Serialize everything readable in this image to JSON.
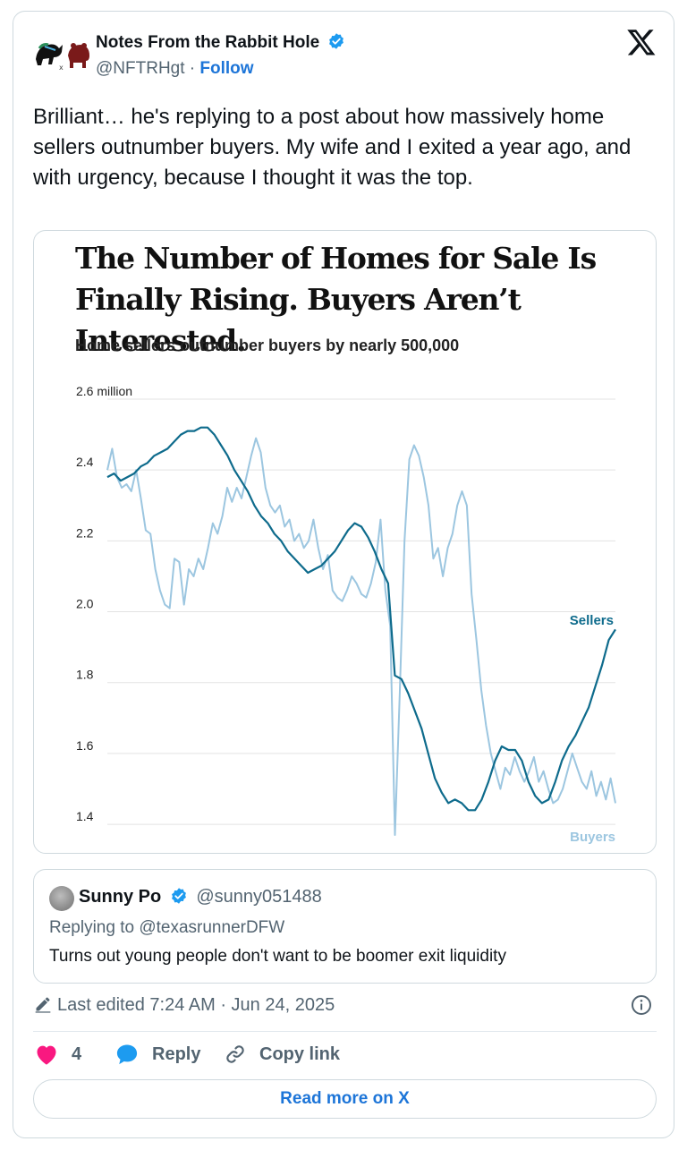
{
  "author": {
    "name": "Notes From the Rabbit Hole",
    "handle": "@NFTRHgt",
    "separator": "·",
    "follow_label": "Follow"
  },
  "tweet_text": "Brilliant… he's replying to a post about how massively home sellers outnumber buyers. My wife and I exited a year ago, and with urgency, because I thought it was the top.",
  "media": {
    "headline_line1": "The Number of Homes for Sale Is",
    "headline_line2": "Finally Rising. Buyers Aren’t Interested.",
    "subhead": "Home sellers outnumber buyers by nearly 500,000"
  },
  "chart_data": {
    "type": "line",
    "title": "The Number of Homes for Sale Is Finally Rising. Buyers Aren’t Interested.",
    "subtitle": "Home sellers outnumber buyers by nearly 500,000",
    "ylim": [
      1.37,
      2.6
    ],
    "y_ticks": [
      {
        "value": 2.6,
        "label": "2.6 million"
      },
      {
        "value": 2.4,
        "label": "2.4"
      },
      {
        "value": 2.2,
        "label": "2.2"
      },
      {
        "value": 2.0,
        "label": "2.0"
      },
      {
        "value": 1.8,
        "label": "1.8"
      },
      {
        "value": 1.6,
        "label": "1.6"
      },
      {
        "value": 1.4,
        "label": "1.4"
      }
    ],
    "grid": true,
    "colors": {
      "sellers": "#0e6b8c",
      "buyers": "#9cc6e0"
    },
    "series": [
      {
        "name": "Sellers",
        "values": [
          2.38,
          2.39,
          2.37,
          2.38,
          2.39,
          2.41,
          2.42,
          2.44,
          2.45,
          2.46,
          2.48,
          2.5,
          2.51,
          2.51,
          2.52,
          2.52,
          2.5,
          2.47,
          2.44,
          2.4,
          2.37,
          2.34,
          2.3,
          2.27,
          2.25,
          2.22,
          2.2,
          2.17,
          2.15,
          2.13,
          2.11,
          2.12,
          2.13,
          2.15,
          2.17,
          2.2,
          2.23,
          2.25,
          2.24,
          2.21,
          2.17,
          2.12,
          2.08,
          1.82,
          1.81,
          1.77,
          1.72,
          1.67,
          1.6,
          1.53,
          1.49,
          1.46,
          1.47,
          1.46,
          1.44,
          1.44,
          1.47,
          1.52,
          1.58,
          1.62,
          1.61,
          1.61,
          1.58,
          1.52,
          1.48,
          1.46,
          1.47,
          1.52,
          1.58,
          1.62,
          1.65,
          1.69,
          1.73,
          1.79,
          1.85,
          1.92,
          1.95
        ]
      },
      {
        "name": "Buyers",
        "values": [
          2.4,
          2.46,
          2.38,
          2.35,
          2.36,
          2.34,
          2.4,
          2.32,
          2.23,
          2.22,
          2.12,
          2.06,
          2.02,
          2.01,
          2.15,
          2.14,
          2.02,
          2.12,
          2.1,
          2.15,
          2.12,
          2.18,
          2.25,
          2.22,
          2.27,
          2.35,
          2.31,
          2.35,
          2.32,
          2.38,
          2.44,
          2.49,
          2.45,
          2.35,
          2.3,
          2.28,
          2.3,
          2.24,
          2.26,
          2.2,
          2.22,
          2.18,
          2.2,
          2.26,
          2.18,
          2.12,
          2.16,
          2.06,
          2.04,
          2.03,
          2.06,
          2.1,
          2.08,
          2.05,
          2.04,
          2.08,
          2.14,
          2.26,
          2.06,
          1.96,
          1.37,
          1.77,
          2.2,
          2.43,
          2.47,
          2.44,
          2.38,
          2.3,
          2.15,
          2.18,
          2.1,
          2.18,
          2.22,
          2.3,
          2.34,
          2.3,
          2.05,
          1.92,
          1.78,
          1.68,
          1.6,
          1.55,
          1.5,
          1.56,
          1.54,
          1.59,
          1.55,
          1.52,
          1.55,
          1.59,
          1.52,
          1.55,
          1.5,
          1.46,
          1.47,
          1.5,
          1.55,
          1.6,
          1.56,
          1.52,
          1.5,
          1.55,
          1.48,
          1.52,
          1.47,
          1.53,
          1.46
        ]
      }
    ],
    "labels": {
      "sellers": "Sellers",
      "buyers": "Buyers"
    }
  },
  "quote": {
    "name": "Sunny Po",
    "handle": "@sunny051488",
    "replying_to": "Replying to @texasrunnerDFW",
    "text": "Turns out young people don't want to be boomer exit liquidity"
  },
  "meta": {
    "edited": "Last edited 7:24 AM · Jun 24, 2025"
  },
  "actions": {
    "like_count": "4",
    "reply_label": "Reply",
    "copy_label": "Copy link"
  },
  "read_more_label": "Read more on X",
  "icons": {
    "verified": "verified-badge-icon",
    "x": "x-logo-icon",
    "pencil": "pencil-icon",
    "info": "info-icon",
    "heart": "heart-icon",
    "reply": "reply-bubble-icon",
    "link": "link-icon"
  }
}
